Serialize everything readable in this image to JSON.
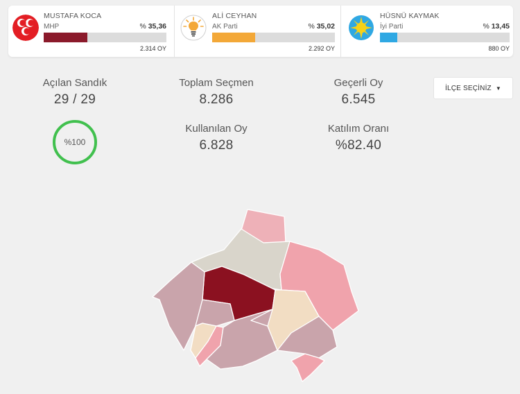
{
  "candidates": [
    {
      "name": "MUSTAFA KOCA",
      "party": "MHP",
      "pct_prefix": "%",
      "pct": "35,36",
      "votes": "2.314 OY",
      "color": "#8b1a2b",
      "logo": "mhp-crescents-icon",
      "share": 0.3536
    },
    {
      "name": "ALİ CEYHAN",
      "party": "AK Parti",
      "pct_prefix": "%",
      "pct": "35,02",
      "votes": "2.292 OY",
      "color": "#f3a838",
      "logo": "akp-lightbulb-icon",
      "share": 0.3502
    },
    {
      "name": "HÜSNÜ KAYMAK",
      "party": "İyi Parti",
      "pct_prefix": "%",
      "pct": "13,45",
      "votes": "880 OY",
      "color": "#2fa8e3",
      "logo": "iyi-sun-icon",
      "share": 0.1345
    }
  ],
  "stats": {
    "acilan_sandik": {
      "label": "Açılan Sandık",
      "value": "29 / 29"
    },
    "toplam_secmen": {
      "label": "Toplam Seçmen",
      "value": "8.286"
    },
    "gecerli_oy": {
      "label": "Geçerli Oy",
      "value": "6.545"
    },
    "kullanilan_oy": {
      "label": "Kullanılan Oy",
      "value": "6.828"
    },
    "katilim_orani": {
      "label": "Katılım Oranı",
      "value": "%82.40"
    },
    "progress": "%100"
  },
  "ilce_select": {
    "label": "İLÇE SEÇİNİZ",
    "caret": "▼"
  },
  "map_colors": {
    "mhp_dark": "#8b1120",
    "mhp_light": "#eeb1b8",
    "mhp_pink": "#f0a3ac",
    "mauve": "#c9a4ab",
    "beige": "#f2ddc3",
    "grey": "#d9d5cb"
  }
}
